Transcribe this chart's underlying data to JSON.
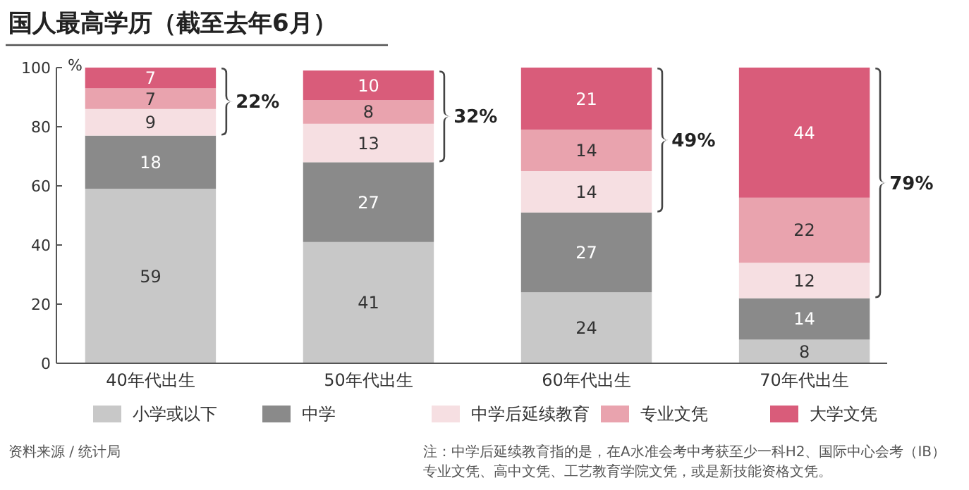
{
  "chart_data": {
    "type": "bar",
    "title": "国人最高学历（截至去年6月）",
    "ylabel": "%",
    "categories": [
      "40年代出生",
      "50年代出生",
      "60年代出生",
      "70年代出生"
    ],
    "stacked": true,
    "series": [
      {
        "name": "小学或以下",
        "color": "#c8c8c8",
        "values": [
          59,
          41,
          24,
          8
        ]
      },
      {
        "name": "中学",
        "color": "#8a8a8a",
        "values": [
          18,
          27,
          27,
          14
        ]
      },
      {
        "name": "中学后延续教育",
        "color": "#f6dfe2",
        "values": [
          9,
          13,
          14,
          12
        ]
      },
      {
        "name": "专业文凭",
        "color": "#e9a3ae",
        "values": [
          7,
          8,
          14,
          22
        ]
      },
      {
        "name": "大学文凭",
        "color": "#d95c7a",
        "values": [
          7,
          10,
          21,
          44
        ]
      }
    ],
    "ylim": [
      0,
      100
    ],
    "yticks": [
      0,
      20,
      40,
      60,
      80,
      100
    ],
    "data_labels": true,
    "grid": false,
    "legend": "bottom",
    "annotations": [
      "22%",
      "32%",
      "49%",
      "79%",
      "资料来源 / 统计局",
      "注：中学后延续教育指的是，在A水准会考中考获至少一科H2、国际中心会考（IB）专业文凭、高中文凭、工艺教育学院文凭，或是新技能资格文凭。"
    ]
  }
}
